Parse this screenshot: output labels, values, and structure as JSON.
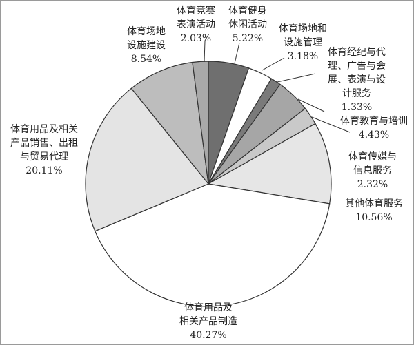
{
  "chart_data": {
    "type": "pie",
    "title": "",
    "start": "top",
    "direction": "clockwise",
    "slices": [
      {
        "label": [
          "体育健身",
          "休闲活动"
        ],
        "value": 5.22,
        "pct": "5.22%",
        "color": "#6f6f6f"
      },
      {
        "label": [
          "体育场地和",
          "设施管理"
        ],
        "value": 3.18,
        "pct": "3.18%",
        "color": "#ffffff"
      },
      {
        "label": [
          "体育经纪与代",
          "理、广告与会",
          "展、表演与设",
          "计服务"
        ],
        "value": 1.33,
        "pct": "1.33%",
        "color": "#7a7a7a"
      },
      {
        "label": [
          "体育教育与培训"
        ],
        "value": 4.43,
        "pct": "4.43%",
        "color": "#a6a6a6"
      },
      {
        "label": [
          "体育传媒与",
          "信息服务"
        ],
        "value": 2.32,
        "pct": "2.32%",
        "color": "#c9c9c9"
      },
      {
        "label": [
          "其他体育服务"
        ],
        "value": 10.56,
        "pct": "10.56%",
        "color": "#e6e6e6"
      },
      {
        "label": [
          "体育用品及",
          "相关产品制造"
        ],
        "value": 40.27,
        "pct": "40.27%",
        "color": "#ffffff"
      },
      {
        "label": [
          "体育用品及相关",
          "产品销售、出租",
          "与贸易代理"
        ],
        "value": 20.11,
        "pct": "20.11%",
        "color": "#e4e4e4"
      },
      {
        "label": [
          "体育场地",
          "设施建设"
        ],
        "value": 8.54,
        "pct": "8.54%",
        "color": "#bdbdbd"
      },
      {
        "label": [
          "体育竞赛",
          "表演活动"
        ],
        "value": 2.03,
        "pct": "2.03%",
        "color": "#a9a9a9"
      }
    ]
  }
}
